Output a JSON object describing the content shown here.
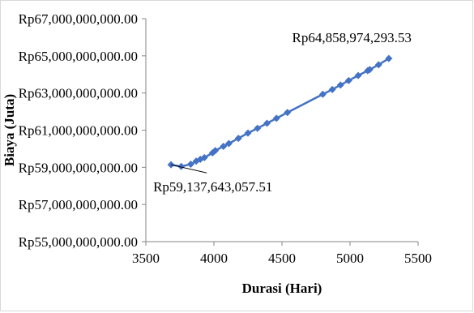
{
  "chart_data": {
    "type": "scatter",
    "title": "",
    "xlabel": "Durasi (Hari)",
    "ylabel": "Biaya (Juta)",
    "xlim": [
      3500,
      5500
    ],
    "ylim": [
      55000000000,
      67000000000
    ],
    "x_ticks": [
      3500,
      4000,
      4500,
      5000,
      5500
    ],
    "x_tick_labels": [
      "3500",
      "4000",
      "4500",
      "5000",
      "5500"
    ],
    "y_ticks": [
      55000000000,
      57000000000,
      59000000000,
      61000000000,
      63000000000,
      65000000000,
      67000000000
    ],
    "y_tick_labels": [
      "Rp55,000,000,000.00",
      "Rp57,000,000,000.00",
      "Rp59,000,000,000.00",
      "Rp61,000,000,000.00",
      "Rp63,000,000,000.00",
      "Rp65,000,000,000.00",
      "Rp67,000,000,000.00"
    ],
    "grid": false,
    "legend": "none",
    "line_color": "#4472c4",
    "series": [
      {
        "x": [
          3685,
          3760,
          3830,
          3870,
          3900,
          3930,
          3990,
          4010,
          4070,
          4110,
          4180,
          4250,
          4320,
          4390,
          4460,
          4540,
          4800,
          4870,
          4930,
          4990,
          5060,
          5130,
          5145,
          5210,
          5285
        ],
        "values": [
          59137643057.51,
          59050000000,
          59170000000,
          59330000000,
          59430000000,
          59520000000,
          59780000000,
          59900000000,
          60130000000,
          60280000000,
          60560000000,
          60840000000,
          61100000000,
          61370000000,
          61640000000,
          61950000000,
          62930000000,
          63190000000,
          63430000000,
          63670000000,
          63940000000,
          64200000000,
          64260000000,
          64520000000,
          64858974293.53
        ]
      }
    ],
    "annotations": [
      {
        "text": "Rp64,858,974,293.53",
        "x": 5285,
        "y": 64858974293.53
      },
      {
        "text": "Rp59,137,643,057.51",
        "x": 3685,
        "y": 59137643057.51
      }
    ]
  }
}
